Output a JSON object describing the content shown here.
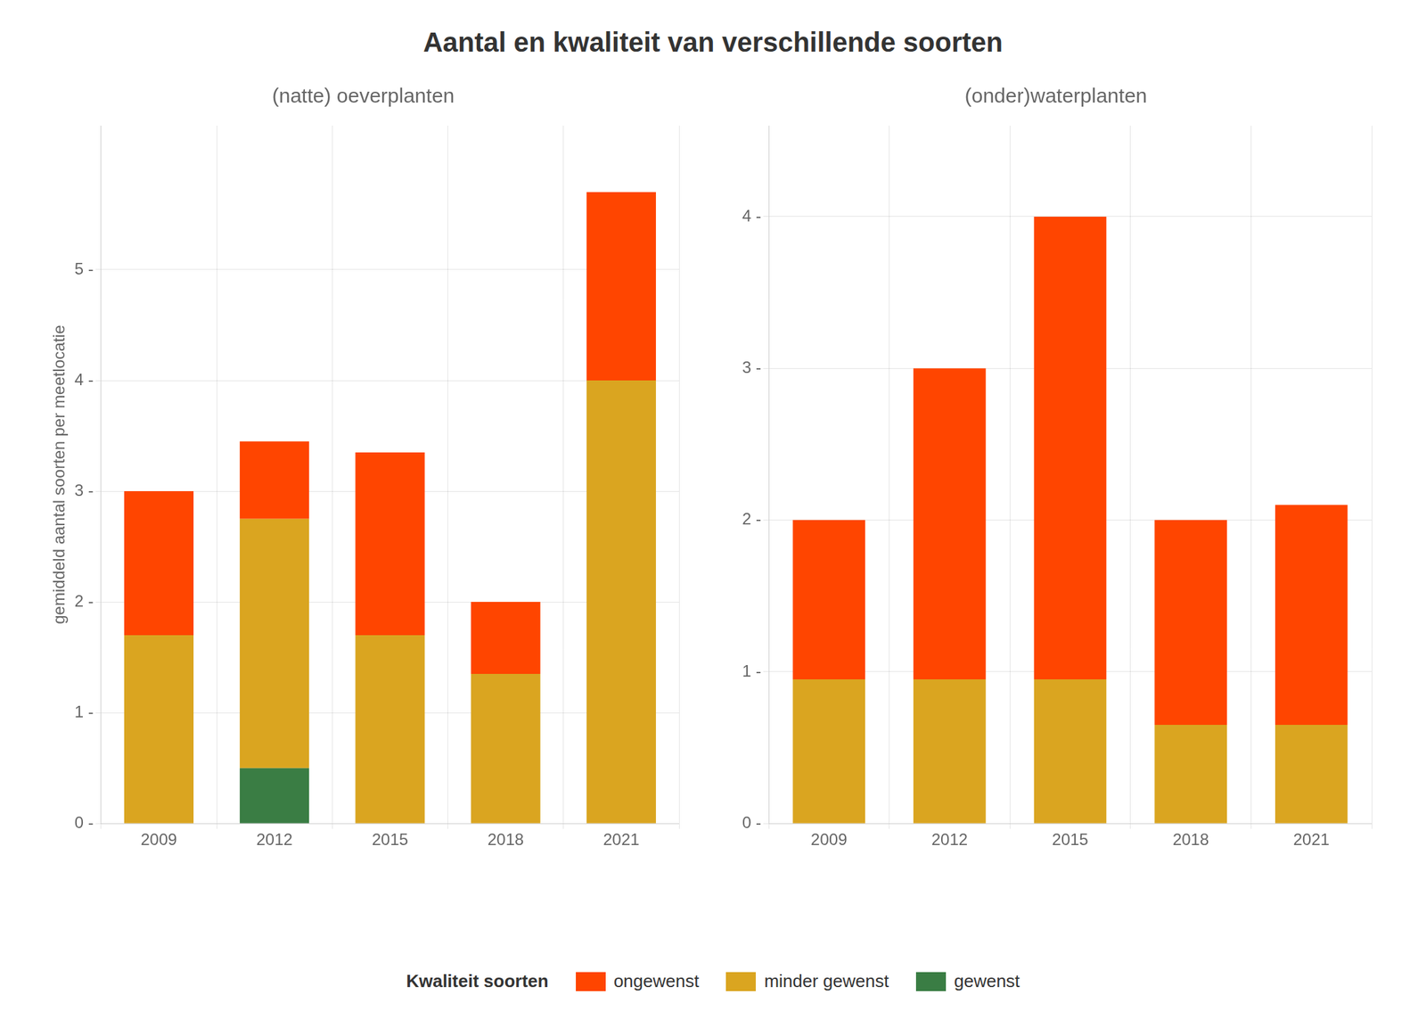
{
  "title": "Aantal en kwaliteit van verschillende soorten",
  "legend": "bottom",
  "legend_title": "Kwaliteit soorten",
  "chart_data": [
    {
      "type": "bar",
      "subtitle": "(natte) oeverplanten",
      "ylabel": "gemiddeld aantal soorten per meetlocatie",
      "categories": [
        2009,
        2012,
        2015,
        2018,
        2021
      ],
      "stacked": true,
      "grid": true,
      "series": [
        {
          "name": "gewenst",
          "color": "#3A7D44",
          "values": [
            0.0,
            0.5,
            0.0,
            0.0,
            0.0
          ]
        },
        {
          "name": "minder gewenst",
          "color": "#DAA520",
          "values": [
            1.7,
            2.25,
            1.7,
            1.35,
            4.0
          ]
        },
        {
          "name": "ongewenst",
          "color": "#FF4500",
          "values": [
            1.3,
            0.7,
            1.65,
            0.65,
            1.7
          ]
        }
      ],
      "ylim": [
        0,
        6.3
      ],
      "yticks": [
        {
          "value": 0,
          "label": "0 -"
        },
        {
          "value": 1,
          "label": "1 -"
        },
        {
          "value": 2,
          "label": "2 -"
        },
        {
          "value": 3,
          "label": "3 -"
        },
        {
          "value": 4,
          "label": "4 -"
        },
        {
          "value": 5,
          "label": "5 -"
        }
      ]
    },
    {
      "type": "bar",
      "subtitle": "(onder)waterplanten",
      "categories": [
        2009,
        2012,
        2015,
        2018,
        2021
      ],
      "stacked": true,
      "grid": true,
      "series": [
        {
          "name": "gewenst",
          "color": "#3A7D44",
          "values": [
            0.0,
            0.0,
            0.0,
            0.0,
            0.0
          ]
        },
        {
          "name": "minder gewenst",
          "color": "#DAA520",
          "values": [
            0.95,
            0.95,
            0.95,
            0.65,
            0.65
          ]
        },
        {
          "name": "ongewenst",
          "color": "#FF4500",
          "values": [
            1.05,
            2.05,
            3.05,
            1.35,
            1.45
          ]
        }
      ],
      "ylim": [
        0,
        4.6
      ],
      "yticks": [
        {
          "value": 0,
          "label": "0 -"
        },
        {
          "value": 1,
          "label": "1 -"
        },
        {
          "value": 2,
          "label": "2 -"
        },
        {
          "value": 3,
          "label": "3 -"
        },
        {
          "value": 4,
          "label": "4 -"
        }
      ]
    }
  ]
}
